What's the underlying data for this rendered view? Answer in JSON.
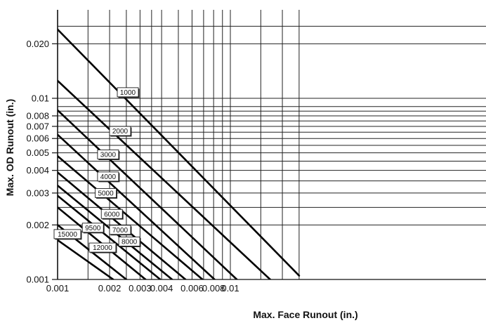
{
  "chart_data": {
    "type": "line",
    "xlabel": "Max. Face Runout (in.)",
    "ylabel": "Max. OD Runout (in.)",
    "x_scale": "log",
    "y_scale": "log",
    "xlim": [
      0.001,
      0.03
    ],
    "ylim": [
      0.001,
      0.03
    ],
    "x_tick_labels": [
      {
        "value": 0.001,
        "label": "0.001"
      },
      {
        "value": 0.002,
        "label": "0.002"
      },
      {
        "value": 0.003,
        "label": "0.003"
      },
      {
        "value": 0.004,
        "label": "0.004"
      },
      {
        "value": 0.006,
        "label": "0.006"
      },
      {
        "value": 0.008,
        "label": "0.008"
      },
      {
        "value": 0.01,
        "label": "0.01"
      }
    ],
    "y_tick_labels": [
      {
        "value": 0.02,
        "label": "0.020"
      },
      {
        "value": 0.01,
        "label": "0.01"
      },
      {
        "value": 0.008,
        "label": "0.008"
      },
      {
        "value": 0.007,
        "label": "0.007"
      },
      {
        "value": 0.006,
        "label": "0.006"
      },
      {
        "value": 0.005,
        "label": "0.005"
      },
      {
        "value": 0.004,
        "label": "0.004"
      },
      {
        "value": 0.003,
        "label": "0.003"
      },
      {
        "value": 0.002,
        "label": "0.002"
      },
      {
        "value": 0.001,
        "label": "0.001"
      }
    ],
    "x_grid": [
      0.001,
      0.0015,
      0.002,
      0.0025,
      0.003,
      0.0035,
      0.004,
      0.005,
      0.006,
      0.007,
      0.008,
      0.009,
      0.01,
      0.015,
      0.02,
      0.025
    ],
    "y_grid": [
      0.0025,
      0.0035,
      0.0045,
      0.0055,
      0.0065,
      0.0075,
      0.0085,
      0.009,
      0.025,
      0.001,
      0.002,
      0.003,
      0.004,
      0.005,
      0.006,
      0.007,
      0.008,
      0.01,
      0.02
    ],
    "grid": true,
    "series": [
      {
        "name": "1000",
        "points": [
          [
            0.001,
            0.024
          ],
          [
            0.025,
            0.00105
          ]
        ]
      },
      {
        "name": "2000",
        "points": [
          [
            0.001,
            0.0125
          ],
          [
            0.017,
            0.001
          ]
        ]
      },
      {
        "name": "3000",
        "points": [
          [
            0.001,
            0.0086
          ],
          [
            0.0109,
            0.001
          ]
        ]
      },
      {
        "name": "4000",
        "points": [
          [
            0.001,
            0.0063
          ],
          [
            0.0081,
            0.001
          ]
        ]
      },
      {
        "name": "5000",
        "points": [
          [
            0.001,
            0.0048
          ],
          [
            0.0069,
            0.001
          ]
        ]
      },
      {
        "name": "6000",
        "points": [
          [
            0.001,
            0.0039
          ],
          [
            0.0055,
            0.001
          ]
        ]
      },
      {
        "name": "7000",
        "points": [
          [
            0.001,
            0.0033
          ],
          [
            0.0046,
            0.001
          ]
        ]
      },
      {
        "name": "8000",
        "points": [
          [
            0.001,
            0.0029
          ],
          [
            0.00393,
            0.001
          ]
        ]
      },
      {
        "name": "9500",
        "points": [
          [
            0.001,
            0.0025
          ],
          [
            0.00323,
            0.001
          ]
        ]
      },
      {
        "name": "12000",
        "points": [
          [
            0.001,
            0.002
          ],
          [
            0.0025,
            0.001
          ]
        ]
      },
      {
        "name": "15000",
        "points": [
          [
            0.001,
            0.00165
          ],
          [
            0.0021,
            0.001
          ]
        ]
      }
    ],
    "annotations": [
      {
        "text": "1000",
        "x": 0.00255,
        "y": 0.0108
      },
      {
        "text": "2000",
        "x": 0.0023,
        "y": 0.0066
      },
      {
        "text": "3000",
        "x": 0.00196,
        "y": 0.0049
      },
      {
        "text": "4000",
        "x": 0.00196,
        "y": 0.0037
      },
      {
        "text": "5000",
        "x": 0.0019,
        "y": 0.003
      },
      {
        "text": "6000",
        "x": 0.00206,
        "y": 0.0023
      },
      {
        "text": "7000",
        "x": 0.0023,
        "y": 0.00188
      },
      {
        "text": "8000",
        "x": 0.0026,
        "y": 0.00162
      },
      {
        "text": "9500",
        "x": 0.0016,
        "y": 0.00193
      },
      {
        "text": "12000",
        "x": 0.00182,
        "y": 0.0015
      },
      {
        "text": "15000",
        "x": 0.00114,
        "y": 0.00178
      }
    ]
  }
}
